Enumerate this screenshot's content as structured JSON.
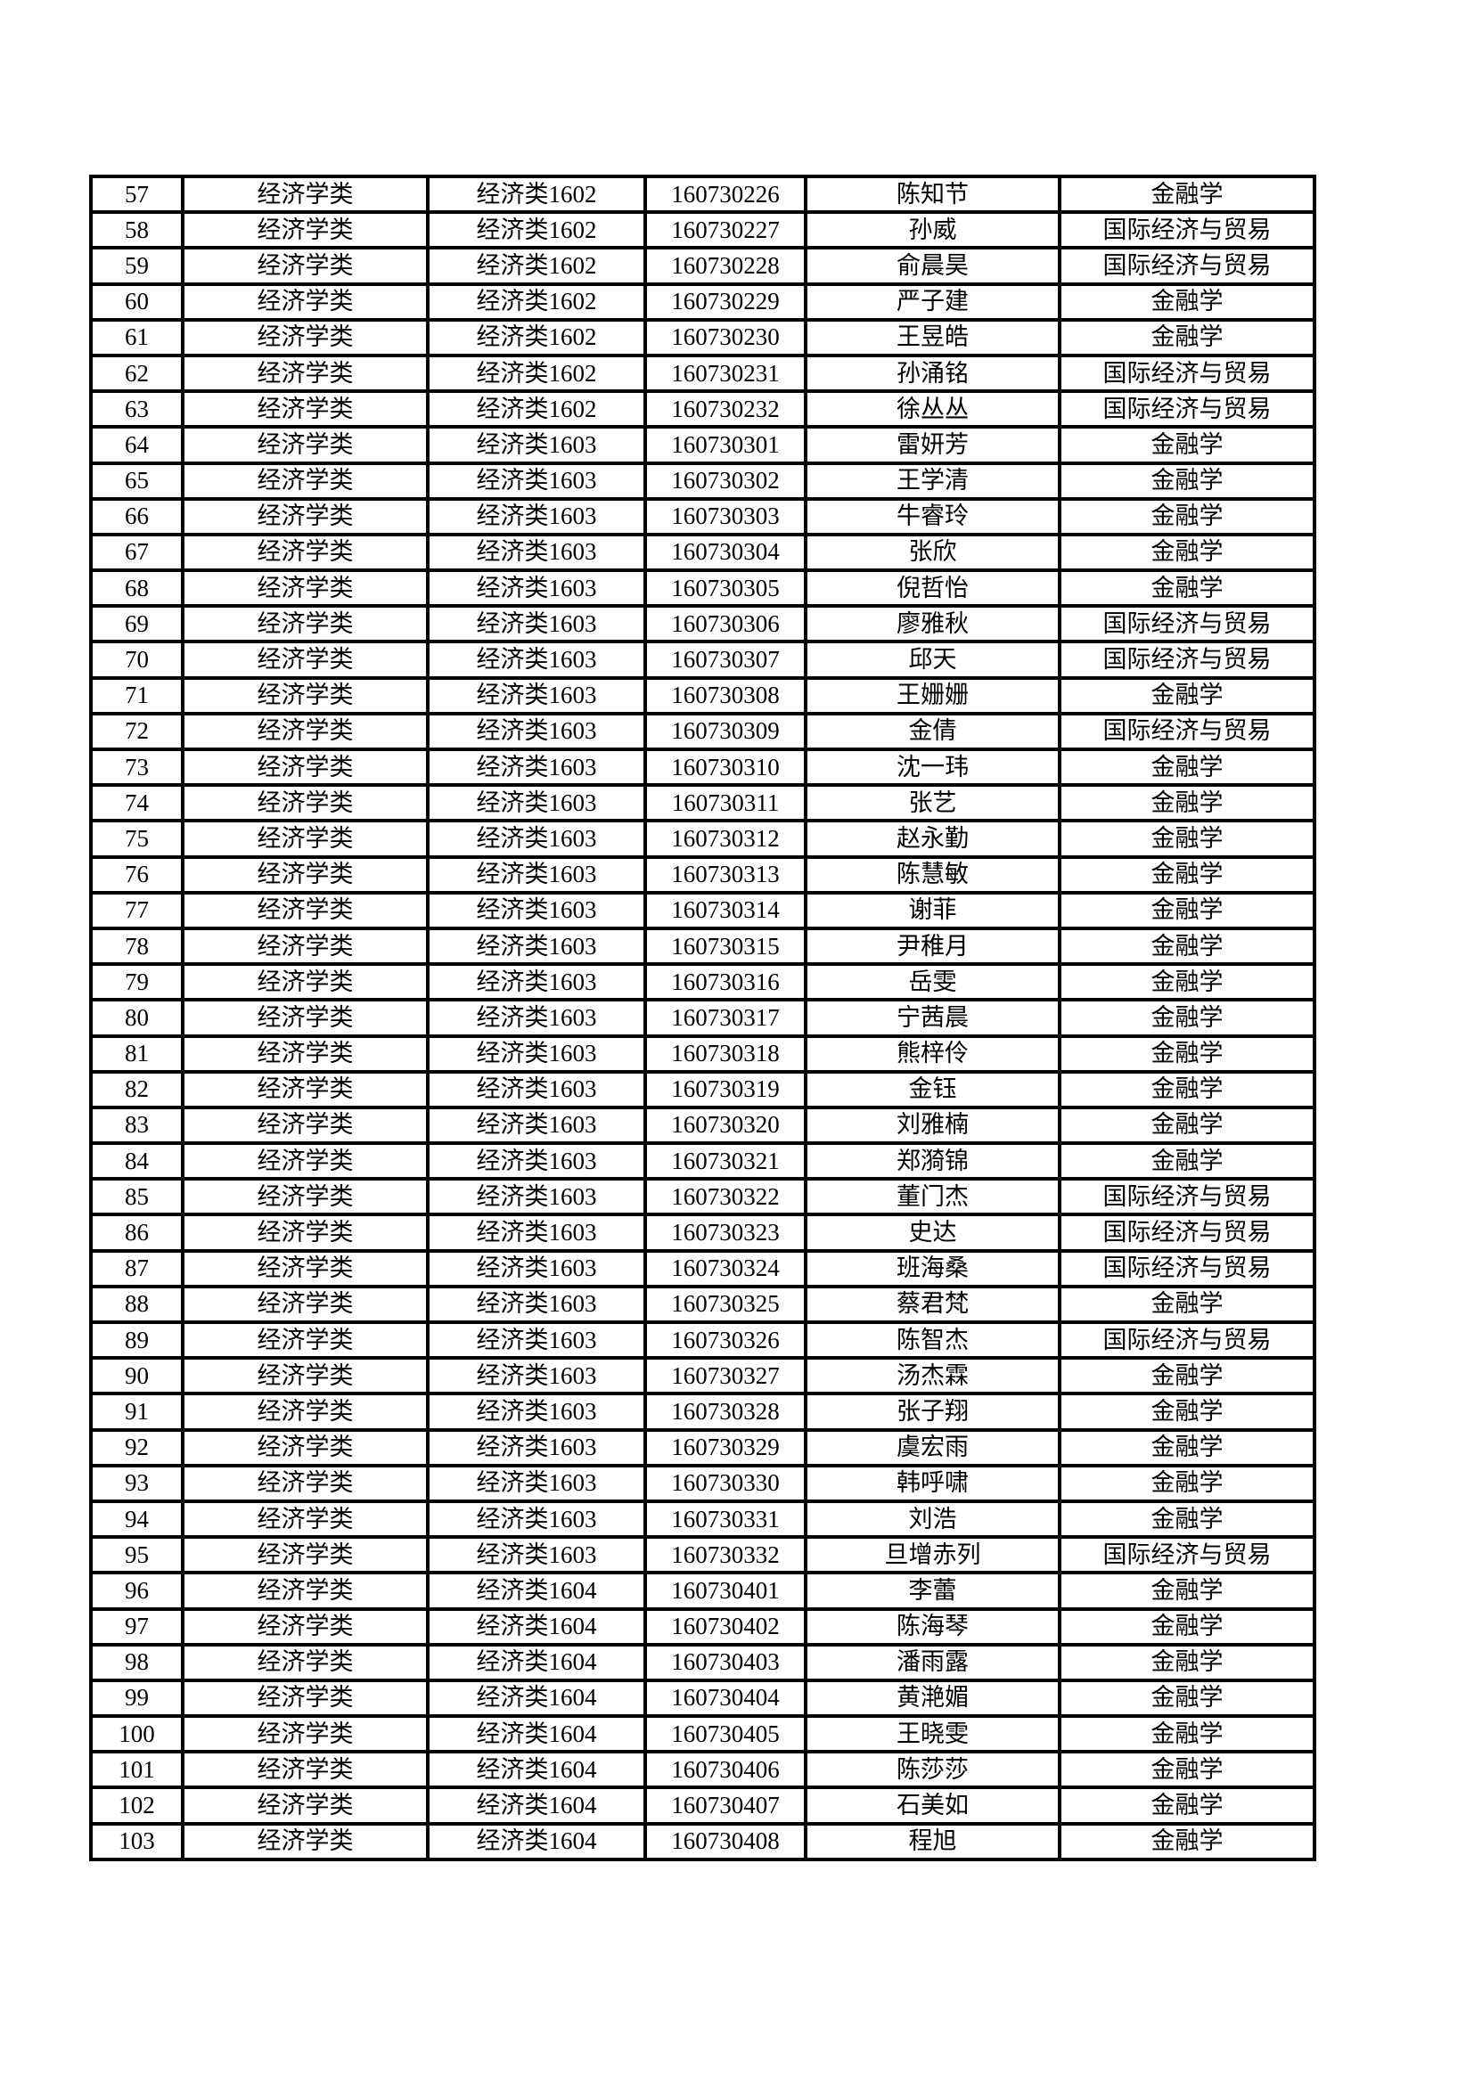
{
  "page": {
    "background_color": "#ffffff",
    "text_color": "#000000",
    "border_color": "#000000"
  },
  "roster": {
    "field_order": [
      "row_number",
      "category",
      "class_name",
      "student_id",
      "student_name",
      "major"
    ],
    "rows": [
      [
        "57",
        "经济学类",
        "经济类1602",
        "160730226",
        "陈知节",
        "金融学"
      ],
      [
        "58",
        "经济学类",
        "经济类1602",
        "160730227",
        "孙威",
        "国际经济与贸易"
      ],
      [
        "59",
        "经济学类",
        "经济类1602",
        "160730228",
        "俞晨昊",
        "国际经济与贸易"
      ],
      [
        "60",
        "经济学类",
        "经济类1602",
        "160730229",
        "严子建",
        "金融学"
      ],
      [
        "61",
        "经济学类",
        "经济类1602",
        "160730230",
        "王昱皓",
        "金融学"
      ],
      [
        "62",
        "经济学类",
        "经济类1602",
        "160730231",
        "孙涌铭",
        "国际经济与贸易"
      ],
      [
        "63",
        "经济学类",
        "经济类1602",
        "160730232",
        "徐丛丛",
        "国际经济与贸易"
      ],
      [
        "64",
        "经济学类",
        "经济类1603",
        "160730301",
        "雷妍芳",
        "金融学"
      ],
      [
        "65",
        "经济学类",
        "经济类1603",
        "160730302",
        "王学清",
        "金融学"
      ],
      [
        "66",
        "经济学类",
        "经济类1603",
        "160730303",
        "牛睿玲",
        "金融学"
      ],
      [
        "67",
        "经济学类",
        "经济类1603",
        "160730304",
        "张欣",
        "金融学"
      ],
      [
        "68",
        "经济学类",
        "经济类1603",
        "160730305",
        "倪哲怡",
        "金融学"
      ],
      [
        "69",
        "经济学类",
        "经济类1603",
        "160730306",
        "廖雅秋",
        "国际经济与贸易"
      ],
      [
        "70",
        "经济学类",
        "经济类1603",
        "160730307",
        "邱天",
        "国际经济与贸易"
      ],
      [
        "71",
        "经济学类",
        "经济类1603",
        "160730308",
        "王姗姗",
        "金融学"
      ],
      [
        "72",
        "经济学类",
        "经济类1603",
        "160730309",
        "金倩",
        "国际经济与贸易"
      ],
      [
        "73",
        "经济学类",
        "经济类1603",
        "160730310",
        "沈一玮",
        "金融学"
      ],
      [
        "74",
        "经济学类",
        "经济类1603",
        "160730311",
        "张艺",
        "金融学"
      ],
      [
        "75",
        "经济学类",
        "经济类1603",
        "160730312",
        "赵永勤",
        "金融学"
      ],
      [
        "76",
        "经济学类",
        "经济类1603",
        "160730313",
        "陈慧敏",
        "金融学"
      ],
      [
        "77",
        "经济学类",
        "经济类1603",
        "160730314",
        "谢菲",
        "金融学"
      ],
      [
        "78",
        "经济学类",
        "经济类1603",
        "160730315",
        "尹稚月",
        "金融学"
      ],
      [
        "79",
        "经济学类",
        "经济类1603",
        "160730316",
        "岳雯",
        "金融学"
      ],
      [
        "80",
        "经济学类",
        "经济类1603",
        "160730317",
        "宁茜晨",
        "金融学"
      ],
      [
        "81",
        "经济学类",
        "经济类1603",
        "160730318",
        "熊梓伶",
        "金融学"
      ],
      [
        "82",
        "经济学类",
        "经济类1603",
        "160730319",
        "金钰",
        "金融学"
      ],
      [
        "83",
        "经济学类",
        "经济类1603",
        "160730320",
        "刘雅楠",
        "金融学"
      ],
      [
        "84",
        "经济学类",
        "经济类1603",
        "160730321",
        "郑漪锦",
        "金融学"
      ],
      [
        "85",
        "经济学类",
        "经济类1603",
        "160730322",
        "董门杰",
        "国际经济与贸易"
      ],
      [
        "86",
        "经济学类",
        "经济类1603",
        "160730323",
        "史达",
        "国际经济与贸易"
      ],
      [
        "87",
        "经济学类",
        "经济类1603",
        "160730324",
        "班海桑",
        "国际经济与贸易"
      ],
      [
        "88",
        "经济学类",
        "经济类1603",
        "160730325",
        "蔡君梵",
        "金融学"
      ],
      [
        "89",
        "经济学类",
        "经济类1603",
        "160730326",
        "陈智杰",
        "国际经济与贸易"
      ],
      [
        "90",
        "经济学类",
        "经济类1603",
        "160730327",
        "汤杰霖",
        "金融学"
      ],
      [
        "91",
        "经济学类",
        "经济类1603",
        "160730328",
        "张子翔",
        "金融学"
      ],
      [
        "92",
        "经济学类",
        "经济类1603",
        "160730329",
        "虞宏雨",
        "金融学"
      ],
      [
        "93",
        "经济学类",
        "经济类1603",
        "160730330",
        "韩呼啸",
        "金融学"
      ],
      [
        "94",
        "经济学类",
        "经济类1603",
        "160730331",
        "刘浩",
        "金融学"
      ],
      [
        "95",
        "经济学类",
        "经济类1603",
        "160730332",
        "旦增赤列",
        "国际经济与贸易"
      ],
      [
        "96",
        "经济学类",
        "经济类1604",
        "160730401",
        "李蕾",
        "金融学"
      ],
      [
        "97",
        "经济学类",
        "经济类1604",
        "160730402",
        "陈海琴",
        "金融学"
      ],
      [
        "98",
        "经济学类",
        "经济类1604",
        "160730403",
        "潘雨露",
        "金融学"
      ],
      [
        "99",
        "经济学类",
        "经济类1604",
        "160730404",
        "黄滟媚",
        "金融学"
      ],
      [
        "100",
        "经济学类",
        "经济类1604",
        "160730405",
        "王晓雯",
        "金融学"
      ],
      [
        "101",
        "经济学类",
        "经济类1604",
        "160730406",
        "陈莎莎",
        "金融学"
      ],
      [
        "102",
        "经济学类",
        "经济类1604",
        "160730407",
        "石美如",
        "金融学"
      ],
      [
        "103",
        "经济学类",
        "经济类1604",
        "160730408",
        "程旭",
        "金融学"
      ]
    ]
  }
}
